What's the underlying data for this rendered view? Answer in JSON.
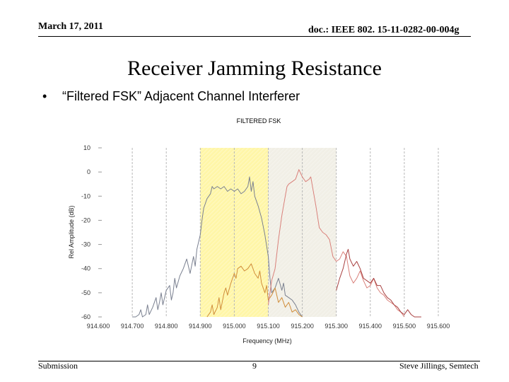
{
  "header": {
    "date": "March 17, 2011",
    "doc": "doc.: IEEE 802. 15-11-0282-00-004g"
  },
  "slide": {
    "title": "Receiver Jamming Resistance",
    "bullet": "“Filtered FSK” Adjacent Channel Interferer"
  },
  "footer": {
    "left": "Submission",
    "page": "9",
    "right": "Steve Jillings, Semtech"
  },
  "chart_data": {
    "type": "line",
    "title": "FILTERED FSK",
    "xlabel": "Frequency (MHz)",
    "ylabel": "Rel Amplitude (dB)",
    "xlim": [
      914.6,
      915.6
    ],
    "ylim": [
      -60,
      10
    ],
    "x_ticks": [
      "914.600",
      "914.700",
      "914.800",
      "914.900",
      "915.000",
      "915.100",
      "915.200",
      "915.300",
      "915.400",
      "915.500",
      "915.600"
    ],
    "y_ticks": [
      "10",
      "0",
      "-10",
      "-20",
      "-30",
      "-40",
      "-50",
      "-60"
    ],
    "grid": "vertical dashed",
    "shaded_bands": [
      {
        "from": 914.9,
        "to": 915.1,
        "color": "#fff6a8"
      },
      {
        "from": 915.1,
        "to": 915.3,
        "color": "#f1efe6"
      }
    ],
    "series": [
      {
        "color": "#7a8090",
        "x": [
          914.7,
          914.71,
          914.72,
          914.725,
          914.73,
          914.74,
          914.745,
          914.75,
          914.76,
          914.77,
          914.775,
          914.78,
          914.785,
          914.79,
          914.8,
          914.81,
          914.815,
          914.82,
          914.825,
          914.83,
          914.84,
          914.85,
          914.86,
          914.87,
          914.88,
          914.885,
          914.89,
          914.9,
          914.905,
          914.91,
          914.915,
          914.92,
          914.93,
          914.935,
          914.94,
          914.95,
          914.96,
          914.97,
          914.98,
          914.99,
          915.0,
          915.01,
          915.02,
          915.03,
          915.04,
          915.045,
          915.05,
          915.055,
          915.06,
          915.07,
          915.08,
          915.09,
          915.1,
          915.105,
          915.11,
          915.12,
          915.13,
          915.14,
          915.145,
          915.15,
          915.16,
          915.17,
          915.18,
          915.19,
          915.2
        ],
        "y": [
          -60,
          -60,
          -59,
          -57,
          -60,
          -59,
          -55,
          -59,
          -56,
          -52,
          -57,
          -54,
          -50,
          -55,
          -49,
          -47,
          -53,
          -50,
          -44,
          -48,
          -43,
          -40,
          -36,
          -42,
          -35,
          -39,
          -32,
          -26,
          -20,
          -15,
          -13,
          -11,
          -9,
          -6,
          -7,
          -6,
          -7,
          -6,
          -8,
          -7,
          -8,
          -7,
          -9,
          -8,
          -6,
          -2,
          -8,
          -4,
          -10,
          -14,
          -19,
          -26,
          -35,
          -44,
          -50,
          -48,
          -44,
          -49,
          -46,
          -51,
          -52,
          -53,
          -55,
          -58,
          -60
        ]
      },
      {
        "color": "#d08d3a",
        "x": [
          914.92,
          914.93,
          914.935,
          914.94,
          914.95,
          914.955,
          914.96,
          914.97,
          914.975,
          914.98,
          914.99,
          915.0,
          915.005,
          915.01,
          915.02,
          915.03,
          915.04,
          915.05,
          915.06,
          915.07,
          915.075,
          915.08,
          915.09,
          915.095,
          915.1,
          915.11,
          915.12,
          915.13,
          915.14,
          915.15,
          915.16,
          915.17,
          915.18,
          915.19,
          915.2
        ],
        "y": [
          -60,
          -58,
          -55,
          -59,
          -56,
          -52,
          -57,
          -50,
          -48,
          -51,
          -46,
          -42,
          -44,
          -40,
          -39,
          -41,
          -40,
          -38,
          -42,
          -44,
          -41,
          -46,
          -50,
          -47,
          -53,
          -51,
          -48,
          -54,
          -52,
          -56,
          -54,
          -58,
          -57,
          -59,
          -60
        ]
      },
      {
        "color": "#d9807a",
        "x": [
          915.1,
          915.11,
          915.12,
          915.13,
          915.14,
          915.15,
          915.155,
          915.16,
          915.17,
          915.18,
          915.19,
          915.2,
          915.21,
          915.22,
          915.225,
          915.23,
          915.24,
          915.25,
          915.26,
          915.27,
          915.28,
          915.29,
          915.3,
          915.31,
          915.32,
          915.33,
          915.34,
          915.35,
          915.36,
          915.37,
          915.38,
          915.39,
          915.4,
          915.41,
          915.42,
          915.43,
          915.44,
          915.45,
          915.46,
          915.47,
          915.48,
          915.49,
          915.5
        ],
        "y": [
          -55,
          -45,
          -40,
          -28,
          -18,
          -10,
          -6,
          -5,
          -4,
          -3,
          1,
          -2,
          -4,
          -3,
          -2,
          -6,
          -14,
          -23,
          -25,
          -26,
          -28,
          -35,
          -37,
          -36,
          -33,
          -35,
          -43,
          -46,
          -44,
          -41,
          -45,
          -48,
          -47,
          -44,
          -48,
          -50,
          -51,
          -53,
          -54,
          -55,
          -57,
          -58,
          -60
        ]
      },
      {
        "color": "#a84040",
        "x": [
          915.3,
          915.31,
          915.32,
          915.33,
          915.335,
          915.34,
          915.35,
          915.36,
          915.37,
          915.38,
          915.39,
          915.4,
          915.41,
          915.42,
          915.43,
          915.44,
          915.45,
          915.46,
          915.47,
          915.48,
          915.49,
          915.5,
          915.51,
          915.52,
          915.53,
          915.54,
          915.55
        ],
        "y": [
          -49,
          -44,
          -40,
          -34,
          -32,
          -36,
          -39,
          -37,
          -40,
          -44,
          -45,
          -46,
          -44,
          -47,
          -47,
          -50,
          -52,
          -53,
          -55,
          -56,
          -58,
          -59,
          -57,
          -59,
          -60,
          -60,
          -60
        ]
      }
    ]
  }
}
